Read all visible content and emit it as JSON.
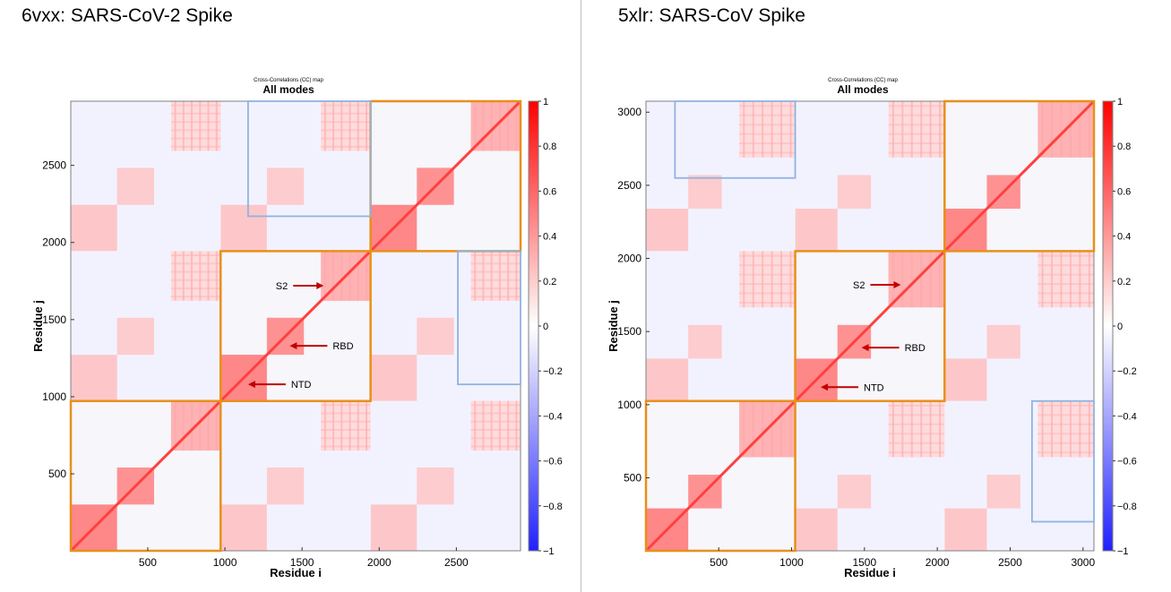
{
  "panels": [
    {
      "title": "6vxx: SARS-CoV-2 Spike"
    },
    {
      "title": "5xlr: SARS-CoV Spike"
    }
  ],
  "chart_data": [
    {
      "type": "heatmap",
      "title": "All modes",
      "subtitle": "Cross-Correlations (CC) map",
      "xlabel": "Residue i",
      "ylabel": "Residue j",
      "xlim": [
        1,
        2916
      ],
      "ylim": [
        1,
        2916
      ],
      "xticks": [
        500,
        1000,
        1500,
        2000,
        2500
      ],
      "yticks": [
        500,
        1000,
        1500,
        2000,
        2500
      ],
      "colorbar": {
        "range": [
          -1,
          1
        ],
        "ticks": [
          -1,
          -0.8,
          -0.6,
          -0.4,
          -0.2,
          0,
          0.2,
          0.4,
          0.6,
          0.8,
          1
        ]
      },
      "chain_boundaries": [
        1,
        972,
        1944,
        2916
      ],
      "domain_blocks": [
        {
          "name": "NTD",
          "range": [
            1,
            300
          ],
          "value": 0.55
        },
        {
          "name": "RBD",
          "range": [
            300,
            540
          ],
          "value": 0.5
        },
        {
          "name": "S2",
          "range": [
            650,
            972
          ],
          "value": 0.35
        }
      ],
      "highlight_boxes": [
        {
          "color": "orange",
          "x": [
            1,
            972
          ],
          "y": [
            1,
            972
          ]
        },
        {
          "color": "orange",
          "x": [
            972,
            1944
          ],
          "y": [
            972,
            1944
          ]
        },
        {
          "color": "orange",
          "x": [
            1944,
            2916
          ],
          "y": [
            1944,
            2916
          ]
        },
        {
          "color": "blue",
          "x": [
            1150,
            1944
          ],
          "y": [
            2170,
            2916
          ]
        },
        {
          "color": "blue",
          "x": [
            2510,
            2916
          ],
          "y": [
            1080,
            1944
          ]
        }
      ],
      "annotations": [
        {
          "label": "S2",
          "x": 1640,
          "y": 1720
        },
        {
          "label": "RBD",
          "x": 1420,
          "y": 1330
        },
        {
          "label": "NTD",
          "x": 1150,
          "y": 1080
        }
      ]
    },
    {
      "type": "heatmap",
      "title": "All modes",
      "subtitle": "Cross-Correlations (CC) map",
      "xlabel": "Residue i",
      "ylabel": "Residue j",
      "xlim": [
        1,
        3075
      ],
      "ylim": [
        1,
        3075
      ],
      "xticks": [
        500,
        1000,
        1500,
        2000,
        2500,
        3000
      ],
      "yticks": [
        500,
        1000,
        1500,
        2000,
        2500,
        3000
      ],
      "colorbar": {
        "range": [
          -1,
          1
        ],
        "ticks": [
          -1,
          -0.8,
          -0.6,
          -0.4,
          -0.2,
          0,
          0.2,
          0.4,
          0.6,
          0.8,
          1
        ]
      },
      "chain_boundaries": [
        1,
        1025,
        2050,
        3075
      ],
      "domain_blocks": [
        {
          "name": "NTD",
          "range": [
            1,
            290
          ],
          "value": 0.55
        },
        {
          "name": "RBD",
          "range": [
            290,
            520
          ],
          "value": 0.5
        },
        {
          "name": "S2",
          "range": [
            640,
            1025
          ],
          "value": 0.35
        }
      ],
      "highlight_boxes": [
        {
          "color": "orange",
          "x": [
            1,
            1025
          ],
          "y": [
            1,
            1025
          ]
        },
        {
          "color": "orange",
          "x": [
            1025,
            2050
          ],
          "y": [
            1025,
            2050
          ]
        },
        {
          "color": "orange",
          "x": [
            2050,
            3075
          ],
          "y": [
            2050,
            3075
          ]
        },
        {
          "color": "blue",
          "x": [
            200,
            1025
          ],
          "y": [
            2550,
            3075
          ]
        },
        {
          "color": "blue",
          "x": [
            2650,
            3075
          ],
          "y": [
            200,
            1025
          ]
        }
      ],
      "annotations": [
        {
          "label": "S2",
          "x": 1750,
          "y": 1820
        },
        {
          "label": "RBD",
          "x": 1480,
          "y": 1390
        },
        {
          "label": "NTD",
          "x": 1200,
          "y": 1120
        }
      ]
    }
  ],
  "colors": {
    "orange_box": "#e8901a",
    "blue_box": "#8fb3e0",
    "positive": "#ff0000",
    "negative": "#2020ff",
    "arrow": "#c00000"
  }
}
